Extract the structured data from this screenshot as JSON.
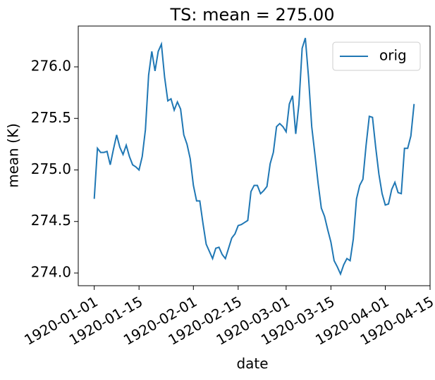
{
  "chart_data": {
    "type": "line",
    "title": "TS: mean =  275.00",
    "x_label": "date",
    "y_label": "mean (K)",
    "x": [
      "1920-01-01",
      "1920-01-02",
      "1920-01-03",
      "1920-01-04",
      "1920-01-05",
      "1920-01-06",
      "1920-01-07",
      "1920-01-08",
      "1920-01-09",
      "1920-01-10",
      "1920-01-11",
      "1920-01-12",
      "1920-01-13",
      "1920-01-14",
      "1920-01-15",
      "1920-01-16",
      "1920-01-17",
      "1920-01-18",
      "1920-01-19",
      "1920-01-20",
      "1920-01-21",
      "1920-01-22",
      "1920-01-23",
      "1920-01-24",
      "1920-01-25",
      "1920-01-26",
      "1920-01-27",
      "1920-01-28",
      "1920-01-29",
      "1920-01-30",
      "1920-01-31",
      "1920-02-01",
      "1920-02-02",
      "1920-02-03",
      "1920-02-04",
      "1920-02-05",
      "1920-02-06",
      "1920-02-07",
      "1920-02-08",
      "1920-02-09",
      "1920-02-10",
      "1920-02-11",
      "1920-02-12",
      "1920-02-13",
      "1920-02-14",
      "1920-02-15",
      "1920-02-16",
      "1920-02-17",
      "1920-02-18",
      "1920-02-19",
      "1920-02-20",
      "1920-02-21",
      "1920-02-22",
      "1920-02-23",
      "1920-02-24",
      "1920-02-25",
      "1920-02-26",
      "1920-02-27",
      "1920-02-28",
      "1920-02-29",
      "1920-03-01",
      "1920-03-02",
      "1920-03-03",
      "1920-03-04",
      "1920-03-05",
      "1920-03-06",
      "1920-03-07",
      "1920-03-08",
      "1920-03-09",
      "1920-03-10",
      "1920-03-11",
      "1920-03-12",
      "1920-03-13",
      "1920-03-14",
      "1920-03-15",
      "1920-03-16",
      "1920-03-17",
      "1920-03-18",
      "1920-03-19",
      "1920-03-20",
      "1920-03-21",
      "1920-03-22",
      "1920-03-23",
      "1920-03-24",
      "1920-03-25",
      "1920-03-26",
      "1920-03-27",
      "1920-03-28",
      "1920-03-29",
      "1920-03-30",
      "1920-03-31",
      "1920-04-01",
      "1920-04-02",
      "1920-04-03",
      "1920-04-04",
      "1920-04-05",
      "1920-04-06",
      "1920-04-07",
      "1920-04-08",
      "1920-04-09",
      "1920-04-10"
    ],
    "series": [
      {
        "name": "orig",
        "color": "#1f77b4",
        "values": [
          274.72,
          275.21,
          275.17,
          275.17,
          275.18,
          275.05,
          275.2,
          275.34,
          275.22,
          275.15,
          275.24,
          275.13,
          275.05,
          275.03,
          275.0,
          275.13,
          275.39,
          275.92,
          276.15,
          275.96,
          276.15,
          276.22,
          275.9,
          275.67,
          275.69,
          275.58,
          275.66,
          275.59,
          275.34,
          275.25,
          275.11,
          274.85,
          274.7,
          274.7,
          274.48,
          274.28,
          274.21,
          274.14,
          274.24,
          274.25,
          274.18,
          274.14,
          274.24,
          274.34,
          274.38,
          274.46,
          274.47,
          274.49,
          274.51,
          274.79,
          274.85,
          274.85,
          274.77,
          274.8,
          274.84,
          275.06,
          275.17,
          275.42,
          275.45,
          275.42,
          275.37,
          275.64,
          275.72,
          275.35,
          275.64,
          276.18,
          276.28,
          275.9,
          275.42,
          275.15,
          274.87,
          274.63,
          274.55,
          274.42,
          274.3,
          274.12,
          274.06,
          273.99,
          274.08,
          274.14,
          274.12,
          274.33,
          274.72,
          274.85,
          274.91,
          275.24,
          275.52,
          275.51,
          275.22,
          274.96,
          274.77,
          274.66,
          274.67,
          274.81,
          274.88,
          274.78,
          274.77,
          275.21,
          275.21,
          275.33,
          275.64
        ]
      }
    ],
    "xlim": [
      "1919-12-27",
      "1920-04-15"
    ],
    "xticks": [
      "1920-01-01",
      "1920-01-15",
      "1920-02-01",
      "1920-02-15",
      "1920-03-01",
      "1920-03-15",
      "1920-04-01",
      "1920-04-15"
    ],
    "ylim": [
      273.877,
      276.396
    ],
    "yticks": [
      {
        "value": 274,
        "label": "274.0"
      },
      {
        "value": 274.5,
        "label": "274.5"
      },
      {
        "value": 275,
        "label": "275.0"
      },
      {
        "value": 275.5,
        "label": "275.5"
      },
      {
        "value": 276,
        "label": "276.0"
      }
    ],
    "legend": "upper right"
  }
}
